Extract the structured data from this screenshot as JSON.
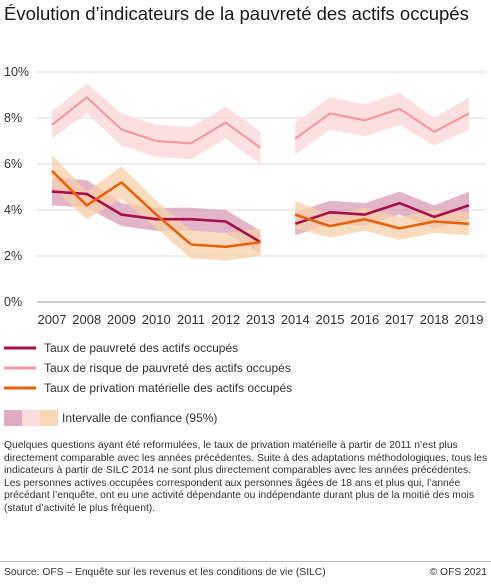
{
  "title": "Évolution d’indicateurs de la pauvreté des actifs occupés",
  "chart_data": {
    "type": "line",
    "x": [
      "2007",
      "2008",
      "2009",
      "2010",
      "2011",
      "2012",
      "2013",
      "2014",
      "2015",
      "2016",
      "2017",
      "2018",
      "2019"
    ],
    "ylim": [
      0,
      10
    ],
    "yticks": [
      "0%",
      "2%",
      "4%",
      "6%",
      "8%",
      "10%"
    ],
    "grid": true,
    "legend_position": "below",
    "series": [
      {
        "name": "Taux de pauvreté des actifs occupés",
        "color": "#a6104a",
        "band_color": "#d99cb5",
        "values": [
          4.8,
          4.7,
          3.8,
          3.6,
          3.6,
          3.5,
          2.6,
          3.4,
          3.9,
          3.8,
          4.3,
          3.7,
          4.2
        ],
        "ci_low": [
          4.2,
          4.1,
          3.3,
          3.1,
          3.1,
          3.0,
          2.1,
          2.9,
          3.4,
          3.3,
          3.8,
          3.2,
          3.6
        ],
        "ci_high": [
          5.4,
          5.3,
          4.3,
          4.1,
          4.1,
          4.0,
          3.1,
          3.9,
          4.4,
          4.3,
          4.8,
          4.2,
          4.8
        ]
      },
      {
        "name": "Taux de risque de pauvreté des actifs occupés",
        "color": "#f4999f",
        "band_color": "#fbd6d6",
        "values": [
          7.7,
          8.9,
          7.5,
          7.0,
          6.9,
          7.8,
          6.7,
          7.1,
          8.2,
          7.9,
          8.4,
          7.4,
          8.2
        ],
        "ci_low": [
          7.1,
          8.2,
          6.8,
          6.3,
          6.2,
          7.1,
          6.0,
          6.4,
          7.5,
          7.2,
          7.7,
          6.8,
          7.5
        ],
        "ci_high": [
          8.3,
          9.5,
          8.2,
          7.7,
          7.6,
          8.5,
          7.4,
          7.8,
          8.9,
          8.6,
          9.1,
          8.0,
          8.9
        ]
      },
      {
        "name": "Taux de privation matérielle des actifs occupés",
        "color": "#e8620c",
        "band_color": "#f7d0aa",
        "values": [
          5.7,
          4.2,
          5.2,
          3.8,
          2.5,
          2.4,
          2.6,
          3.8,
          3.3,
          3.6,
          3.2,
          3.5,
          3.4
        ],
        "ci_low": [
          5.0,
          3.6,
          4.5,
          3.2,
          1.9,
          1.8,
          2.0,
          3.2,
          2.8,
          3.1,
          2.7,
          3.0,
          2.9
        ],
        "ci_high": [
          6.4,
          4.8,
          5.9,
          4.4,
          3.1,
          3.0,
          3.2,
          4.4,
          3.8,
          4.1,
          3.7,
          4.0,
          3.9
        ]
      }
    ],
    "segments": [
      [
        0,
        4
      ],
      [
        4,
        6
      ],
      [
        7,
        12
      ]
    ],
    "ci_legend": "Intervalle de confiance (95%)"
  },
  "notes": [
    "Quelques questions ayant été reformulées, le taux de privation matérielle à partir de 2011 n’est plus directement comparable avec les années précédentes. Suite à des adaptations méthodologiques, tous les indicateurs à partir de SILC 2014 ne sont plus directement comparables avec les années précédentes.",
    "Les personnes actives occupées correspondent aux personnes âgées de 18 ans et plus qui, l’année précédant l’enquête, ont eu une activité dépendante ou indépendante durant plus de la moitié des mois (statut d’activité le plus fréquent)."
  ],
  "source": "Source: OFS – Enquête sur les revenus et les conditions de vie (SILC)",
  "copyright": "© OFS 2021"
}
